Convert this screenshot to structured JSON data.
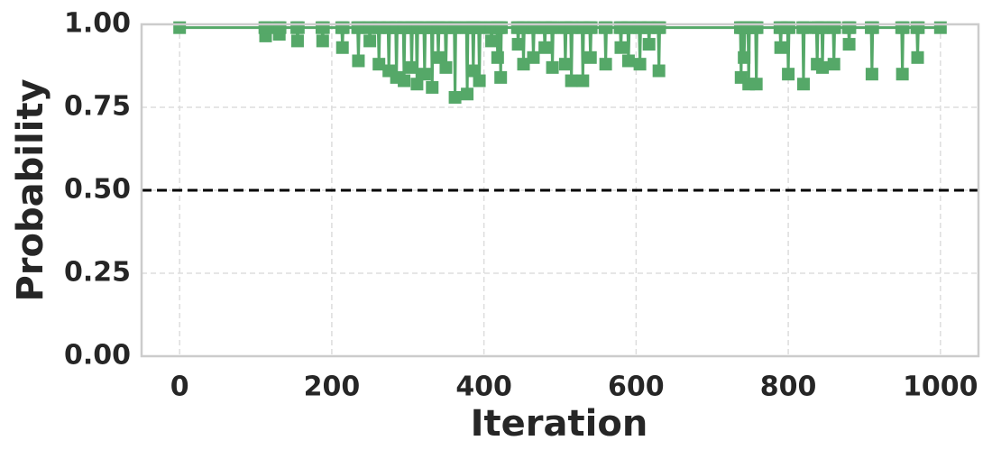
{
  "chart_data": {
    "type": "line",
    "x_label": "Iteration",
    "y_label": "Probability",
    "xlim": [
      -50,
      1050
    ],
    "ylim": [
      0,
      1
    ],
    "xticks": [
      0,
      200,
      400,
      600,
      800,
      1000
    ],
    "yticks": [
      {
        "value": 0,
        "label": "0.00"
      },
      {
        "value": 0.25,
        "label": "0.25"
      },
      {
        "value": 0.5,
        "label": "0.50"
      },
      {
        "value": 0.75,
        "label": "0.75"
      },
      {
        "value": 1,
        "label": "1.00"
      }
    ],
    "grid": true,
    "threshold": 0.5,
    "marker": "square",
    "series": [
      {
        "color": "#55a868",
        "x": [
          0,
          112,
          113,
          114,
          130,
          131,
          132,
          154,
          155,
          156,
          187,
          188,
          189,
          213,
          214,
          215,
          234,
          235,
          236,
          249,
          250,
          251,
          261,
          262,
          263,
          274,
          275,
          276,
          284,
          285,
          286,
          294,
          295,
          296,
          304,
          305,
          306,
          311,
          312,
          313,
          321,
          322,
          323,
          331,
          332,
          333,
          339,
          340,
          341,
          349,
          350,
          351,
          361,
          362,
          363,
          377,
          378,
          379,
          385,
          386,
          387,
          393,
          394,
          395,
          409,
          410,
          411,
          417,
          418,
          419,
          421,
          422,
          423,
          444,
          445,
          446,
          451,
          452,
          453,
          464,
          465,
          466,
          479,
          480,
          481,
          489,
          490,
          491,
          506,
          507,
          508,
          514,
          515,
          516,
          529,
          530,
          531,
          539,
          540,
          541,
          559,
          560,
          561,
          579,
          580,
          581,
          589,
          590,
          591,
          604,
          605,
          606,
          616,
          617,
          618,
          629,
          630,
          631,
          737,
          738,
          739,
          741,
          742,
          743,
          747,
          748,
          749,
          757,
          758,
          759,
          789,
          790,
          791,
          799,
          800,
          801,
          819,
          820,
          821,
          837,
          838,
          839,
          844,
          845,
          846,
          859,
          860,
          861,
          879,
          880,
          881,
          909,
          910,
          911,
          949,
          950,
          951,
          969,
          970,
          971,
          1000
        ],
        "values": [
          0.99,
          0.99,
          0.965,
          0.99,
          0.99,
          0.97,
          0.99,
          0.99,
          0.95,
          0.99,
          0.99,
          0.95,
          0.99,
          0.99,
          0.93,
          0.99,
          0.99,
          0.89,
          0.99,
          0.99,
          0.95,
          0.99,
          0.99,
          0.88,
          0.99,
          0.99,
          0.86,
          0.99,
          0.99,
          0.84,
          0.99,
          0.99,
          0.83,
          0.99,
          0.99,
          0.87,
          0.99,
          0.99,
          0.82,
          0.99,
          0.99,
          0.85,
          0.99,
          0.99,
          0.81,
          0.99,
          0.99,
          0.9,
          0.99,
          0.99,
          0.87,
          0.99,
          0.99,
          0.78,
          0.99,
          0.99,
          0.79,
          0.99,
          0.99,
          0.86,
          0.99,
          0.99,
          0.83,
          0.99,
          0.99,
          0.95,
          0.99,
          0.99,
          0.9,
          0.99,
          0.99,
          0.84,
          0.99,
          0.99,
          0.94,
          0.99,
          0.99,
          0.88,
          0.99,
          0.99,
          0.9,
          0.99,
          0.99,
          0.93,
          0.99,
          0.99,
          0.87,
          0.99,
          0.99,
          0.88,
          0.99,
          0.99,
          0.83,
          0.99,
          0.99,
          0.83,
          0.99,
          0.99,
          0.9,
          0.99,
          0.99,
          0.88,
          0.99,
          0.99,
          0.93,
          0.99,
          0.99,
          0.89,
          0.99,
          0.99,
          0.88,
          0.99,
          0.99,
          0.94,
          0.99,
          0.99,
          0.86,
          0.99,
          0.99,
          0.84,
          0.99,
          0.99,
          0.9,
          0.99,
          0.99,
          0.82,
          0.99,
          0.99,
          0.82,
          0.99,
          0.99,
          0.93,
          0.99,
          0.99,
          0.85,
          0.99,
          0.99,
          0.82,
          0.99,
          0.99,
          0.88,
          0.99,
          0.99,
          0.87,
          0.99,
          0.99,
          0.88,
          0.99,
          0.99,
          0.94,
          0.99,
          0.99,
          0.85,
          0.99,
          0.99,
          0.85,
          0.99,
          0.99,
          0.9,
          0.99,
          0.99
        ]
      }
    ]
  }
}
